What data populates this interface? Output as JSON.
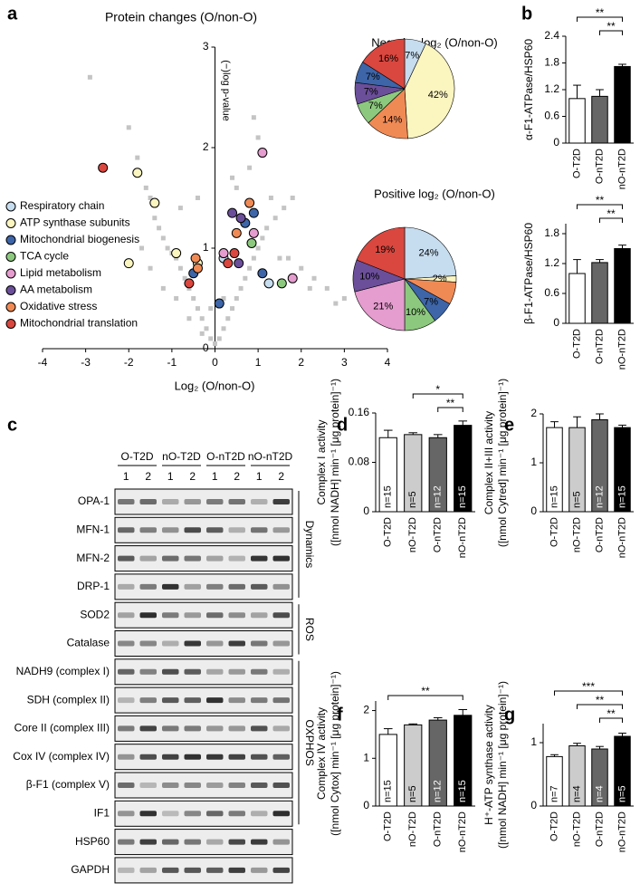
{
  "chart_data": [
    {
      "type": "scatter",
      "panel": "a",
      "title": "Protein changes (O/non-O)",
      "xlabel": "Log₂ (O/non-O)",
      "ylabel": "(−)log p-value",
      "xlim": [
        -4,
        4
      ],
      "ylim": [
        0,
        3
      ],
      "xticks": [
        -4,
        -3,
        -2,
        -1,
        0,
        1,
        2,
        3,
        4
      ],
      "yticks": [
        0,
        1,
        2,
        3
      ],
      "series": [
        {
          "color": "#c4c4c4",
          "x": [
            -2.0,
            -1.8,
            -1.6,
            -1.5,
            -1.4,
            -1.3,
            -1.2,
            -1.1,
            -1.0,
            -0.9,
            -0.8,
            -0.7,
            -0.6,
            -0.5,
            -0.4,
            -0.3,
            -0.2,
            -0.1,
            0.0,
            0.1,
            0.2,
            0.3,
            0.4,
            0.5,
            0.6,
            0.7,
            0.8,
            0.9,
            1.0,
            1.1,
            1.2,
            1.4,
            1.6,
            1.8,
            2.0,
            2.3,
            2.6,
            3.0,
            3.5,
            -2.9,
            -1.7,
            -1.2,
            -0.9,
            -0.6,
            -0.3,
            -0.1,
            0.2,
            0.5,
            0.8,
            1.0,
            1.3,
            1.7,
            2.2,
            2.8,
            -0.4,
            0.4,
            -0.8,
            0.9,
            -1.5,
            1.5
          ],
          "y": [
            2.2,
            1.9,
            1.6,
            1.5,
            1.3,
            1.2,
            1.1,
            1.0,
            0.95,
            0.9,
            0.8,
            0.7,
            0.6,
            0.5,
            0.4,
            0.3,
            0.2,
            0.1,
            0.05,
            0.1,
            0.2,
            0.3,
            0.4,
            0.5,
            0.6,
            0.7,
            0.8,
            0.9,
            1.0,
            1.1,
            1.2,
            1.3,
            1.4,
            1.5,
            0.8,
            0.7,
            0.6,
            0.5,
            0.4,
            2.7,
            1.0,
            0.6,
            0.5,
            0.3,
            0.15,
            0.4,
            0.5,
            1.6,
            1.8,
            2.1,
            1.5,
            0.9,
            0.6,
            0.45,
            1.5,
            1.7,
            1.4,
            2.3,
            0.8,
            0.9
          ]
        },
        {
          "name": "Respiratory chain",
          "color": "#c6dcef",
          "x": [
            0.2,
            1.25
          ],
          "y": [
            0.9,
            0.65
          ]
        },
        {
          "name": "ATP synthase subunits",
          "color": "#fbf5c0",
          "x": [
            -1.8,
            -1.4,
            -2.0,
            -0.9,
            -0.4
          ],
          "y": [
            1.75,
            1.45,
            0.85,
            0.95,
            0.85
          ]
        },
        {
          "name": "Mitochondrial biogenesis",
          "color": "#3d65a8",
          "x": [
            -0.5,
            0.7,
            0.9,
            1.1,
            0.1
          ],
          "y": [
            0.75,
            1.25,
            1.35,
            0.75,
            0.45
          ]
        },
        {
          "name": "TCA cycle",
          "color": "#8cc97e",
          "x": [
            0.85,
            1.55
          ],
          "y": [
            1.05,
            0.65
          ]
        },
        {
          "name": "Lipid metabolism",
          "color": "#e59ccf",
          "x": [
            0.2,
            1.1,
            0.9,
            1.8
          ],
          "y": [
            0.95,
            1.95,
            1.15,
            0.7
          ]
        },
        {
          "name": "AA metabolism",
          "color": "#6b4f9a",
          "x": [
            0.4,
            0.6,
            0.55
          ],
          "y": [
            1.35,
            1.3,
            0.85
          ]
        },
        {
          "name": "Oxidative stress",
          "color": "#f08a55",
          "x": [
            -0.45,
            0.5,
            0.8,
            -0.4
          ],
          "y": [
            0.9,
            1.15,
            1.45,
            0.8
          ]
        },
        {
          "name": "Mitochondrial translation",
          "color": "#d9473f",
          "x": [
            -2.6,
            -0.6,
            0.3,
            0.45
          ],
          "y": [
            1.8,
            0.65,
            0.85,
            0.95
          ]
        }
      ]
    },
    {
      "type": "pie",
      "title": "Negative log₂ (O/non-O)",
      "values": [
        7,
        42,
        14,
        7,
        7,
        7,
        16
      ],
      "value_labels": [
        "7%",
        "42%",
        "14%",
        "7%",
        "7%",
        "7%",
        "16%"
      ],
      "colors": [
        "#c6dcef",
        "#fbf5c0",
        "#f08a55",
        "#8cc97e",
        "#6b4f9a",
        "#3d65a8",
        "#d9473f"
      ]
    },
    {
      "type": "pie",
      "title": "Positive log₂ (O/non-O)",
      "values": [
        24,
        2,
        7,
        7,
        10,
        21,
        10,
        19
      ],
      "value_labels": [
        "24%",
        "2%",
        null,
        "7%",
        "10%",
        "21%",
        "10%",
        "19%"
      ],
      "colors": [
        "#c6dcef",
        "#fbf5c0",
        "#f08a55",
        "#3d65a8",
        "#8cc97e",
        "#e59ccf",
        "#6b4f9a",
        "#d9473f"
      ]
    },
    {
      "type": "bar",
      "panel": "b",
      "ylabel": [
        "α-F1-ATPase/HSP60"
      ],
      "categories": [
        "O-T2D",
        "O-nT2D",
        "nO-nT2D"
      ],
      "values": [
        1.0,
        1.05,
        1.72
      ],
      "errors": [
        0.3,
        0.15,
        0.05
      ],
      "colors": [
        "#ffffff",
        "#666666",
        "#000000"
      ],
      "ylim": [
        0,
        2.4
      ],
      "yticks": [
        0,
        0.6,
        1.2,
        1.8,
        2.4
      ],
      "significance": [
        "**",
        "**"
      ]
    },
    {
      "type": "bar",
      "ylabel": [
        "β-F1-ATPase/HSP60"
      ],
      "categories": [
        "O-T2D",
        "O-nT2D",
        "nO-nT2D"
      ],
      "values": [
        1.0,
        1.22,
        1.5
      ],
      "errors": [
        0.28,
        0.06,
        0.07
      ],
      "colors": [
        "#ffffff",
        "#666666",
        "#000000"
      ],
      "ylim": [
        0,
        2.0
      ],
      "yticks": [
        0,
        0.6,
        1.2,
        1.8
      ],
      "significance": [
        "**",
        "**"
      ]
    },
    {
      "type": "bar",
      "panel": "d",
      "ylabel": [
        "Complex I activity",
        "([nmol NADH] min⁻¹ [μg protein]⁻¹)"
      ],
      "categories": [
        "O-T2D",
        "nO-T2D",
        "O-nT2D",
        "nO-nT2D"
      ],
      "values": [
        0.12,
        0.125,
        0.12,
        0.14
      ],
      "errors": [
        0.012,
        0.003,
        0.005,
        0.007
      ],
      "n_labels": [
        "n=15",
        "n=5",
        "n=12",
        "n=15"
      ],
      "colors": [
        "#ffffff",
        "#cccccc",
        "#666666",
        "#000000"
      ],
      "ylim": [
        0,
        0.16
      ],
      "yticks": [
        0,
        0.08,
        0.16
      ],
      "significance": [
        "*",
        "**"
      ]
    },
    {
      "type": "bar",
      "panel": "e",
      "ylabel": [
        "Complex II+III activity",
        "([nmol Cytred] min⁻¹ [μg protein]⁻¹)"
      ],
      "categories": [
        "O-T2D",
        "nO-T2D",
        "O-nT2D",
        "nO-nT2D"
      ],
      "values": [
        1.72,
        1.72,
        1.88,
        1.72
      ],
      "errors": [
        0.12,
        0.22,
        0.12,
        0.05
      ],
      "n_labels": [
        "n=15",
        "n=5",
        "n=12",
        "n=15"
      ],
      "colors": [
        "#ffffff",
        "#cccccc",
        "#666666",
        "#000000"
      ],
      "ylim": [
        0,
        2
      ],
      "yticks": [
        0,
        1,
        2
      ],
      "significance": []
    },
    {
      "type": "bar",
      "panel": "f",
      "ylabel": [
        "Complex IV activity",
        "([nmol Cytox] min⁻¹ [μg protein]⁻¹)"
      ],
      "categories": [
        "O-T2D",
        "nO-T2D",
        "O-nT2D",
        "nO-nT2D"
      ],
      "values": [
        1.5,
        1.7,
        1.8,
        1.9
      ],
      "errors": [
        0.12,
        0.02,
        0.05,
        0.12
      ],
      "n_labels": [
        "n=15",
        "n=5",
        "n=12",
        "n=15"
      ],
      "colors": [
        "#ffffff",
        "#cccccc",
        "#666666",
        "#000000"
      ],
      "ylim": [
        0,
        2.2
      ],
      "yticks": [
        0,
        1,
        2
      ],
      "significance": [
        "**"
      ]
    },
    {
      "type": "bar",
      "panel": "g",
      "ylabel": [
        "H⁺-ATP synthase activity",
        "([nmol NADH] min⁻¹ [μg protein]⁻¹)"
      ],
      "categories": [
        "O-T2D",
        "nO-T2D",
        "O-nT2D",
        "nO-nT2D"
      ],
      "values": [
        0.78,
        0.95,
        0.9,
        1.1
      ],
      "errors": [
        0.03,
        0.04,
        0.04,
        0.05
      ],
      "n_labels": [
        "n=7",
        "n=4",
        "n=4",
        "n=5"
      ],
      "colors": [
        "#ffffff",
        "#cccccc",
        "#666666",
        "#000000"
      ],
      "ylim": [
        0,
        1.3
      ],
      "yticks": [
        0,
        1
      ],
      "significance": [
        "***",
        "**",
        "**"
      ]
    }
  ],
  "blot": {
    "panel": "c",
    "groups": [
      "O-T2D",
      "nO-T2D",
      "O-nT2D",
      "nO-nT2D"
    ],
    "lanes": [
      "1",
      "2"
    ],
    "rows": [
      "OPA-1",
      "MFN-1",
      "MFN-2",
      "DRP-1",
      "SOD2",
      "Catalase",
      "NADH9 (complex I)",
      "SDH (complex II)",
      "Core II (complex III)",
      "Cox IV (complex IV)",
      "β-F1 (complex V)",
      "IF1",
      "HSP60",
      "GAPDH"
    ],
    "sections": [
      "Dynamics",
      "ROS",
      "OXPHOS"
    ]
  }
}
